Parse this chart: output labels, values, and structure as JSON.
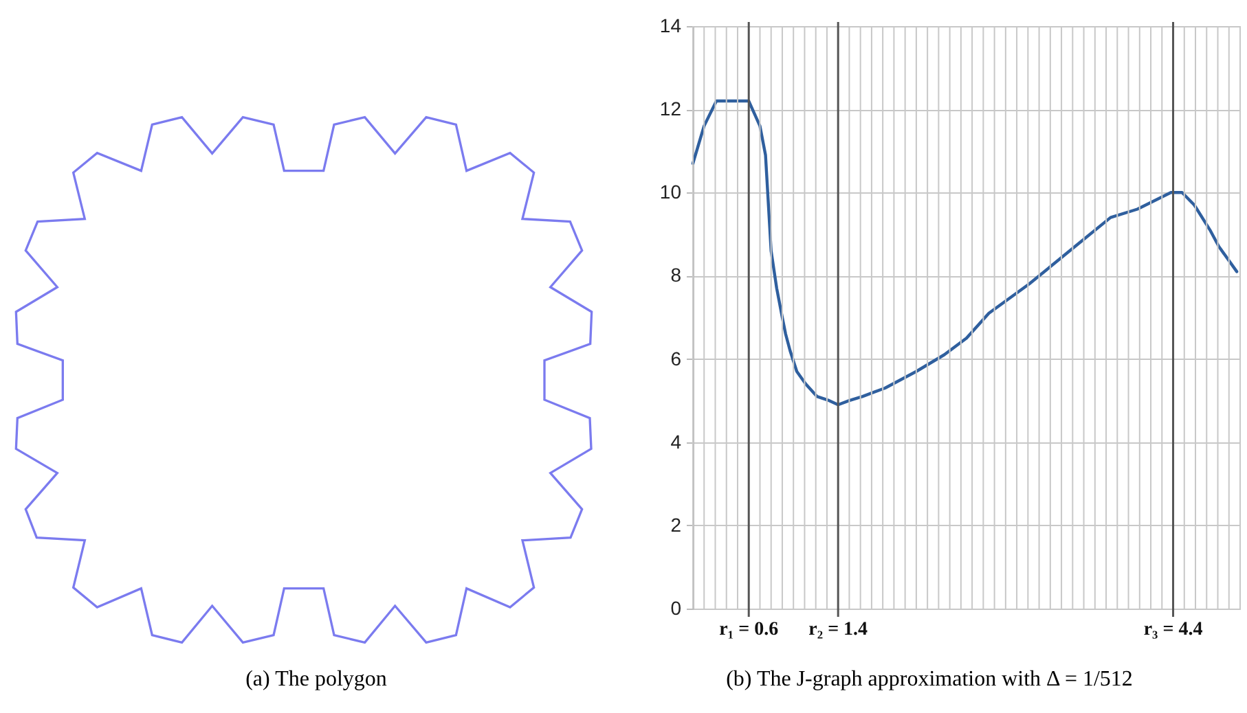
{
  "chart_data": {
    "type": "line",
    "x": [
      0.1,
      0.2,
      0.31,
      0.6,
      0.7,
      0.75,
      0.8,
      0.85,
      0.9,
      0.93,
      0.97,
      1.03,
      1.11,
      1.21,
      1.32,
      1.4,
      1.5,
      1.62,
      1.82,
      2.1,
      2.35,
      2.55,
      2.75,
      3.11,
      3.52,
      3.84,
      4.08,
      4.38,
      4.48,
      4.59,
      4.73,
      4.81,
      4.97
    ],
    "series": [
      {
        "color": "#2f5f9e",
        "values": [
          10.7,
          11.6,
          12.2,
          12.2,
          11.6,
          10.9,
          8.6,
          7.7,
          7.0,
          6.6,
          6.2,
          5.7,
          5.4,
          5.1,
          5.0,
          4.9,
          5.0,
          5.1,
          5.3,
          5.7,
          6.1,
          6.5,
          7.1,
          7.8,
          8.7,
          9.4,
          9.6,
          10.0,
          10.0,
          9.7,
          9.1,
          8.7,
          8.1
        ]
      }
    ],
    "xlim": [
      0.1,
      5.0
    ],
    "xticks": [
      {
        "value": 0.1,
        "label": null
      },
      {
        "value": 0.2,
        "label": null
      },
      {
        "value": 0.3,
        "label": null
      },
      {
        "value": 0.4,
        "label": null
      },
      {
        "value": 0.5,
        "label": null
      },
      {
        "value": 0.7,
        "label": null
      },
      {
        "value": 0.8,
        "label": null
      },
      {
        "value": 0.9,
        "label": null
      },
      {
        "value": 1.0,
        "label": null
      },
      {
        "value": 1.1,
        "label": null
      },
      {
        "value": 1.2,
        "label": null
      },
      {
        "value": 1.3,
        "label": null
      },
      {
        "value": 1.5,
        "label": null
      },
      {
        "value": 1.6,
        "label": null
      },
      {
        "value": 1.7,
        "label": null
      },
      {
        "value": 1.8,
        "label": null
      },
      {
        "value": 1.9,
        "label": null
      },
      {
        "value": 2.0,
        "label": null
      },
      {
        "value": 2.1,
        "label": null
      },
      {
        "value": 2.2,
        "label": null
      },
      {
        "value": 2.3,
        "label": null
      },
      {
        "value": 2.4,
        "label": null
      },
      {
        "value": 2.5,
        "label": null
      },
      {
        "value": 2.6,
        "label": null
      },
      {
        "value": 2.7,
        "label": null
      },
      {
        "value": 2.8,
        "label": null
      },
      {
        "value": 2.9,
        "label": null
      },
      {
        "value": 3.0,
        "label": null
      },
      {
        "value": 3.1,
        "label": null
      },
      {
        "value": 3.2,
        "label": null
      },
      {
        "value": 3.3,
        "label": null
      },
      {
        "value": 3.4,
        "label": null
      },
      {
        "value": 3.5,
        "label": null
      },
      {
        "value": 3.6,
        "label": null
      },
      {
        "value": 3.7,
        "label": null
      },
      {
        "value": 3.8,
        "label": null
      },
      {
        "value": 3.9,
        "label": null
      },
      {
        "value": 4.0,
        "label": null
      },
      {
        "value": 4.1,
        "label": null
      },
      {
        "value": 4.2,
        "label": null
      },
      {
        "value": 4.3,
        "label": null
      },
      {
        "value": 4.5,
        "label": null
      },
      {
        "value": 4.6,
        "label": null
      },
      {
        "value": 4.7,
        "label": null
      },
      {
        "value": 4.8,
        "label": null
      },
      {
        "value": 4.9,
        "label": null
      },
      {
        "value": 5.0,
        "label": null
      }
    ],
    "ylim": [
      0,
      14
    ],
    "yticks": [
      0,
      2,
      4,
      6,
      8,
      10,
      12,
      14
    ],
    "grid": true,
    "tick_labels": "y",
    "ref_lines": [
      {
        "axis": "x",
        "value": 0.6,
        "label": "r₁ = 0.6",
        "color": "#555555"
      },
      {
        "axis": "x",
        "value": 1.4,
        "label": "r₂ = 1.4",
        "color": "#555555"
      },
      {
        "axis": "x",
        "value": 4.4,
        "label": "r₃ = 4.4",
        "color": "#555555"
      }
    ],
    "annotations": [
      "(a) The polygon",
      "(b) The J-graph approximation with Δ = 1/512"
    ]
  }
}
